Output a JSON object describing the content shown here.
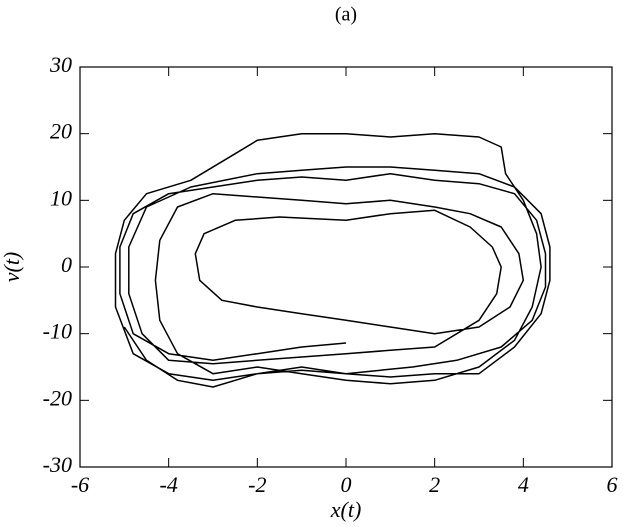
{
  "chart_data": {
    "type": "line",
    "title": "(a)",
    "x_label": "x(t)",
    "y_label": "v(t)",
    "xlim": [
      -6,
      6
    ],
    "ylim": [
      -30,
      30
    ],
    "xticks": [
      -6,
      -4,
      -2,
      0,
      2,
      4,
      6
    ],
    "yticks": [
      -30,
      -20,
      -10,
      0,
      10,
      20,
      30
    ],
    "color": "#000000",
    "x": [
      0,
      -1,
      -2,
      -3,
      -4,
      -4.8,
      -5.1,
      -5.1,
      -4.8,
      -4,
      -3,
      -2,
      -1,
      0,
      1,
      2,
      3,
      3.8,
      4.3,
      4.5,
      4.5,
      4.2,
      3.5,
      2.5,
      1.5,
      0,
      -1,
      -2,
      -3,
      -4,
      -4.8,
      -5.2,
      -5.2,
      -5,
      -4.5,
      -3.5,
      -2.5,
      -2,
      -1,
      0,
      1,
      2,
      3,
      3.5,
      3.6,
      4,
      4.3,
      4.4,
      4.2,
      3.8,
      3,
      2,
      1,
      0,
      -1,
      -2,
      -3,
      -3.8,
      -4.2,
      -4.3,
      -4.2,
      -3.8,
      -3,
      -2,
      -1,
      0,
      1,
      2,
      2.8,
      3.5,
      3.9,
      4,
      3.7,
      3,
      2,
      1,
      0,
      -1,
      -2,
      -2.8,
      -3.3,
      -3.4,
      -3.2,
      -2.5,
      -1.5,
      0,
      1,
      2,
      2.8,
      3.3,
      3.5,
      3.4,
      3,
      2,
      1,
      0,
      -1,
      -2,
      -3,
      -4,
      -4.6,
      -4.9,
      -4.9,
      -4.5,
      -3.5,
      -2,
      -1,
      0,
      1,
      2,
      3,
      3.8,
      4.4,
      4.6,
      4.6,
      4.4,
      3.8,
      3,
      2,
      1,
      0,
      -1,
      -2,
      -3,
      -3.8,
      -4.5,
      -5
    ],
    "values": [
      -11.4,
      -12,
      -13,
      -14,
      -13,
      -10,
      -4,
      3,
      8,
      11,
      12,
      13,
      13.5,
      13,
      14,
      13,
      12.5,
      11,
      7,
      2,
      -3,
      -8,
      -12,
      -14,
      -15,
      -16,
      -15.5,
      -16,
      -17,
      -16,
      -13,
      -6,
      2,
      7,
      11,
      13,
      17,
      19,
      20,
      20,
      19.5,
      20,
      19.5,
      18,
      14,
      10,
      5,
      0,
      -6,
      -11,
      -15,
      -17,
      -17.5,
      -17,
      -16,
      -15,
      -16,
      -13,
      -8,
      -2,
      4,
      9,
      11,
      10.5,
      10,
      9.5,
      10,
      9,
      8,
      6,
      2,
      -2,
      -6,
      -9,
      -10,
      -9,
      -8,
      -7,
      -6,
      -5,
      -2,
      2,
      5,
      7,
      7.5,
      7,
      8,
      8.5,
      6,
      3,
      0,
      -4,
      -8,
      -12,
      -12.5,
      -13,
      -13.5,
      -14,
      -14.5,
      -14,
      -10,
      -4,
      3,
      9,
      12,
      14,
      14.5,
      15,
      15,
      14.5,
      14,
      12,
      8,
      3,
      -2,
      -7,
      -12,
      -16,
      -16,
      -16.5,
      -16,
      -15,
      -16,
      -18,
      -17,
      -14,
      -9
    ]
  }
}
